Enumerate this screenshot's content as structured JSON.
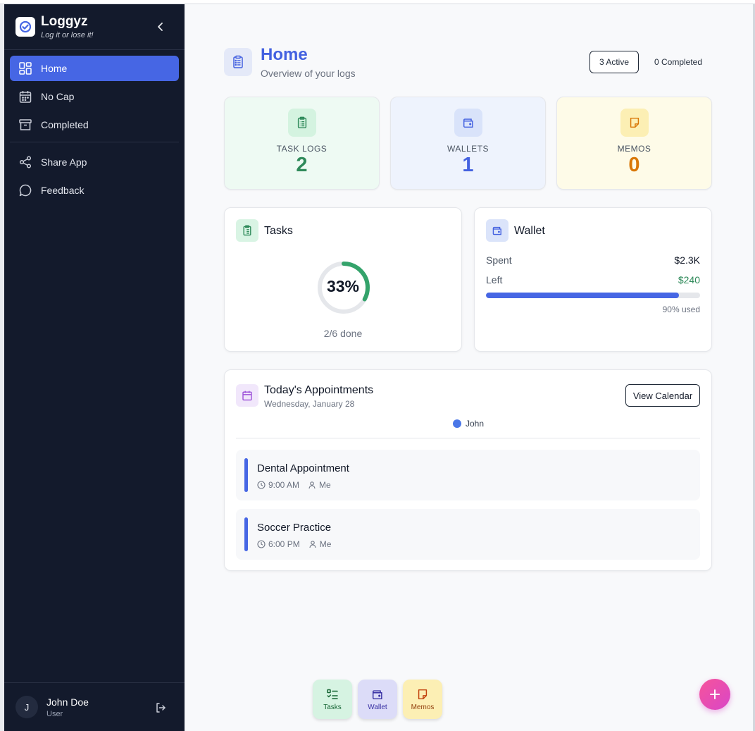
{
  "brand": {
    "name": "Loggyz",
    "tagline": "Log it or lose it!"
  },
  "nav": {
    "items": [
      {
        "label": "Home",
        "icon": "dashboard-icon",
        "active": true
      },
      {
        "label": "No Cap",
        "icon": "calendar-icon"
      },
      {
        "label": "Completed",
        "icon": "archive-icon"
      }
    ],
    "secondary": [
      {
        "label": "Share App",
        "icon": "share-icon"
      },
      {
        "label": "Feedback",
        "icon": "message-circle-icon"
      }
    ]
  },
  "user": {
    "initial": "J",
    "name": "John Doe",
    "role": "User"
  },
  "header": {
    "title": "Home",
    "subtitle": "Overview of your logs",
    "active_badge": "3 Active",
    "completed_badge": "0 Completed"
  },
  "stats": [
    {
      "label": "TASK LOGS",
      "value": "2",
      "color": "#2f8a5a",
      "bg": "#eefaf3",
      "icon_bg": "#d4f3e0",
      "icon": "clipboard-icon"
    },
    {
      "label": "WALLETS",
      "value": "1",
      "color": "#4361e0",
      "bg": "#eef3fd",
      "icon_bg": "#d9e3fa",
      "icon": "wallet-icon"
    },
    {
      "label": "MEMOS",
      "value": "0",
      "color": "#d97706",
      "bg": "#fefbe8",
      "icon_bg": "#fcefb4",
      "icon": "note-icon"
    }
  ],
  "tasks_card": {
    "title": "Tasks",
    "percent_label": "33%",
    "percent": 33,
    "done_label": "2/6 done"
  },
  "wallet_card": {
    "title": "Wallet",
    "spent_label": "Spent",
    "spent_value": "$2.3K",
    "left_label": "Left",
    "left_value": "$240",
    "used_fraction": 0.9,
    "used_label": "90% used"
  },
  "appointments": {
    "title": "Today's Appointments",
    "date": "Wednesday, January 28",
    "view_calendar": "View Calendar",
    "legend_name": "John",
    "items": [
      {
        "title": "Dental Appointment",
        "time": "9:00 AM",
        "who": "Me"
      },
      {
        "title": "Soccer Practice",
        "time": "6:00 PM",
        "who": "Me"
      }
    ]
  },
  "quick_actions": [
    {
      "label": "Tasks",
      "icon": "checklist-icon",
      "bg": "#d6f3e2",
      "color": "#166534"
    },
    {
      "label": "Wallet",
      "icon": "wallet-icon",
      "bg": "#dcdcf8",
      "color": "#3730a3"
    },
    {
      "label": "Memos",
      "icon": "note-icon",
      "bg": "#fcefb4",
      "color": "#92400e"
    }
  ],
  "colors": {
    "accent": "#4666e4",
    "sidebar": "#131a2c",
    "fab": "#e04fb4"
  }
}
